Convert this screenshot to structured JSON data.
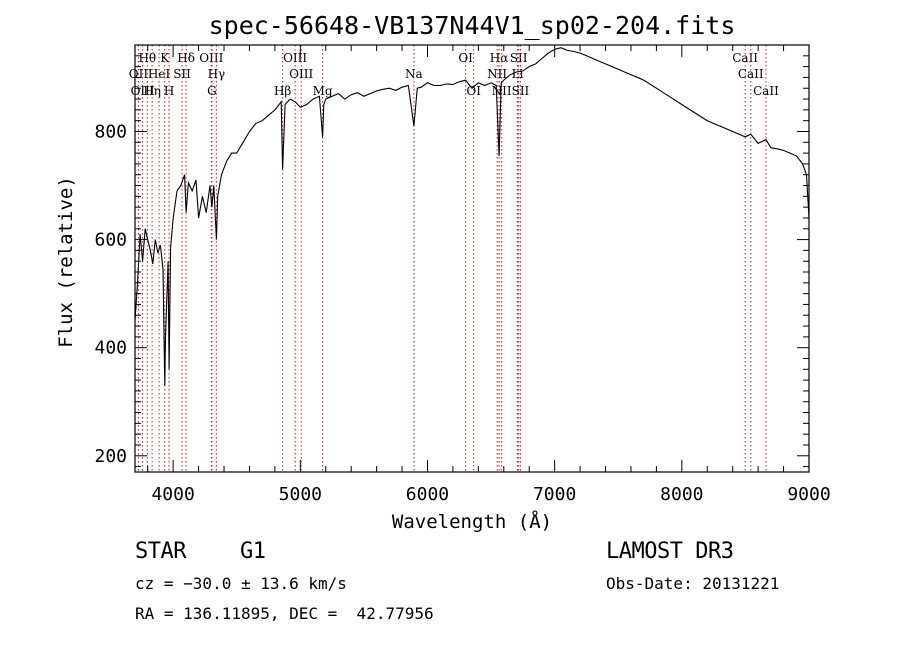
{
  "chart_data": {
    "type": "line",
    "title": "spec-56648-VB137N44V1_sp02-204.fits",
    "xlabel": "Wavelength (Å)",
    "ylabel": "Flux (relative)",
    "xlim": [
      3700,
      9000
    ],
    "ylim": [
      170,
      960
    ],
    "xticks": [
      4000,
      5000,
      6000,
      7000,
      8000,
      9000
    ],
    "yticks": [
      200,
      400,
      600,
      800
    ],
    "series": [
      {
        "name": "flux",
        "x": [
          3700,
          3720,
          3740,
          3760,
          3780,
          3800,
          3820,
          3840,
          3860,
          3880,
          3900,
          3920,
          3934,
          3940,
          3960,
          3968,
          3980,
          4000,
          4030,
          4060,
          4090,
          4102,
          4120,
          4150,
          4180,
          4200,
          4230,
          4260,
          4290,
          4305,
          4320,
          4340,
          4350,
          4380,
          4420,
          4460,
          4500,
          4550,
          4600,
          4650,
          4700,
          4750,
          4800,
          4850,
          4861,
          4880,
          4920,
          4960,
          5000,
          5050,
          5100,
          5150,
          5175,
          5185,
          5200,
          5250,
          5300,
          5350,
          5400,
          5450,
          5500,
          5550,
          5600,
          5650,
          5700,
          5750,
          5800,
          5850,
          5893,
          5920,
          5950,
          6000,
          6050,
          6100,
          6150,
          6200,
          6250,
          6300,
          6350,
          6400,
          6450,
          6500,
          6540,
          6563,
          6580,
          6600,
          6650,
          6700,
          6750,
          6800,
          6850,
          6900,
          6950,
          7000,
          7050,
          7100,
          7150,
          7200,
          7250,
          7300,
          7400,
          7500,
          7600,
          7700,
          7800,
          7900,
          8000,
          8100,
          8200,
          8300,
          8400,
          8498,
          8542,
          8600,
          8662,
          8700,
          8750,
          8800,
          8850,
          8900,
          8950,
          8980,
          9000
        ],
        "values": [
          450,
          520,
          610,
          560,
          620,
          600,
          580,
          555,
          600,
          575,
          590,
          545,
          330,
          420,
          560,
          360,
          585,
          640,
          690,
          700,
          720,
          650,
          705,
          690,
          710,
          640,
          680,
          650,
          700,
          660,
          700,
          600,
          680,
          720,
          745,
          760,
          760,
          780,
          800,
          815,
          820,
          830,
          840,
          855,
          730,
          850,
          860,
          855,
          845,
          850,
          860,
          865,
          790,
          850,
          860,
          865,
          870,
          860,
          868,
          872,
          865,
          870,
          875,
          878,
          880,
          876,
          882,
          885,
          810,
          880,
          882,
          890,
          885,
          885,
          888,
          887,
          892,
          895,
          880,
          890,
          885,
          890,
          885,
          755,
          890,
          895,
          905,
          910,
          912,
          920,
          925,
          935,
          945,
          952,
          955,
          950,
          948,
          945,
          940,
          935,
          925,
          915,
          905,
          895,
          880,
          865,
          850,
          835,
          820,
          810,
          800,
          790,
          795,
          778,
          785,
          770,
          768,
          765,
          760,
          755,
          740,
          720,
          640
        ]
      }
    ],
    "lines": [
      {
        "name": "Hθ",
        "wl": 3797,
        "row": 1
      },
      {
        "name": "OII",
        "wl": 3727,
        "row": 2
      },
      {
        "name": "OIII",
        "wl": 3760,
        "row": 3
      },
      {
        "name": "HeI",
        "wl": 3889,
        "row": 2
      },
      {
        "name": "Hη",
        "wl": 3835,
        "row": 3
      },
      {
        "name": "K",
        "wl": 3934,
        "row": 1
      },
      {
        "name": "H",
        "wl": 3968,
        "row": 3
      },
      {
        "name": "SII",
        "wl": 4070,
        "row": 2
      },
      {
        "name": "Hδ",
        "wl": 4102,
        "row": 1
      },
      {
        "name": "OIII",
        "wl": 4300,
        "row": 1
      },
      {
        "name": "Hγ",
        "wl": 4340,
        "row": 2
      },
      {
        "name": "G",
        "wl": 4305,
        "row": 3
      },
      {
        "name": "Hβ",
        "wl": 4861,
        "row": 3
      },
      {
        "name": "OIII",
        "wl": 4959,
        "row": 1
      },
      {
        "name": "OIII",
        "wl": 5007,
        "row": 2
      },
      {
        "name": "Mg",
        "wl": 5175,
        "row": 3
      },
      {
        "name": "Na",
        "wl": 5893,
        "row": 2
      },
      {
        "name": "OI",
        "wl": 6300,
        "row": 1
      },
      {
        "name": "OI",
        "wl": 6363,
        "row": 3
      },
      {
        "name": "Hα",
        "wl": 6563,
        "row": 1
      },
      {
        "name": "NII",
        "wl": 6548,
        "row": 2
      },
      {
        "name": "NII",
        "wl": 6583,
        "row": 3
      },
      {
        "name": "SII",
        "wl": 6717,
        "row": 1
      },
      {
        "name": "Li",
        "wl": 6708,
        "row": 2
      },
      {
        "name": "SII",
        "wl": 6731,
        "row": 3
      },
      {
        "name": "CaII",
        "wl": 8498,
        "row": 1
      },
      {
        "name": "CaII",
        "wl": 8542,
        "row": 2
      },
      {
        "name": "CaII",
        "wl": 8662,
        "row": 3
      }
    ],
    "line_color": "#b22222",
    "grid": false
  },
  "info": {
    "object_class": "STAR",
    "subclass": "G1",
    "survey": "LAMOST DR3",
    "cz": "cz = −30.0 ± 13.6 km/s",
    "obs_date": "Obs-Date: 20131221",
    "coords": "RA = 136.11895, DEC =  42.77956"
  }
}
